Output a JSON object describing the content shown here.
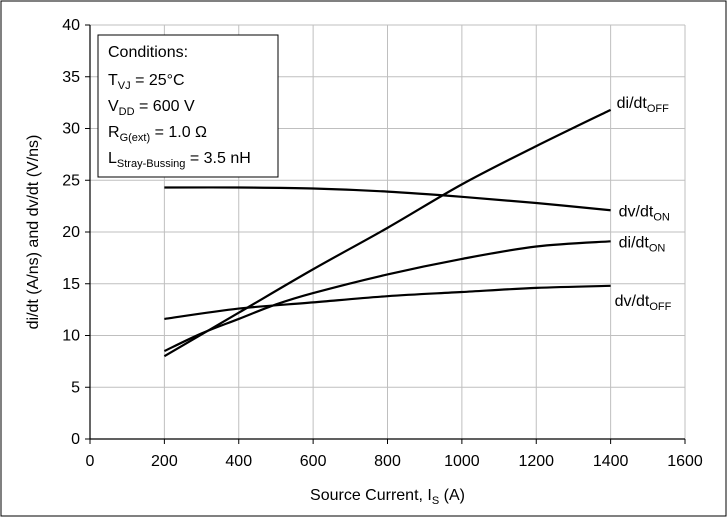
{
  "chart_data": {
    "type": "line",
    "xlabel": {
      "main": "Source Current, I",
      "sub": "S",
      "tail": " (A)"
    },
    "ylabel": "di/dt (A/ns) and dv/dt (V/ns)",
    "xlim": [
      0,
      1600
    ],
    "ylim": [
      0,
      40
    ],
    "x_ticks": [
      0,
      200,
      400,
      600,
      800,
      1000,
      1200,
      1400,
      1600
    ],
    "y_ticks": [
      0,
      5,
      10,
      15,
      20,
      25,
      30,
      35,
      40
    ],
    "grid": true,
    "conditions": {
      "heading": "Conditions:",
      "lines": [
        {
          "main": "T",
          "sub": "VJ",
          "tail": " = 25°C"
        },
        {
          "main": "V",
          "sub": "DD",
          "tail": " = 600 V"
        },
        {
          "main": "R",
          "sub": "G(ext)",
          "tail": " = 1.0 Ω"
        },
        {
          "main": "L",
          "sub": "Stray-Bussing",
          "tail": " = 3.5 nH"
        }
      ]
    },
    "series": [
      {
        "name": "di/dt_OFF",
        "label_main": "di/dt",
        "label_sub": "OFF",
        "x": [
          200,
          400,
          600,
          800,
          1000,
          1200,
          1400
        ],
        "y": [
          8.0,
          12.2,
          16.4,
          20.4,
          24.6,
          28.3,
          31.8
        ]
      },
      {
        "name": "dv/dt_ON",
        "label_main": "dv/dt",
        "label_sub": "ON",
        "x": [
          200,
          400,
          600,
          800,
          1000,
          1200,
          1400
        ],
        "y": [
          24.3,
          24.3,
          24.2,
          23.9,
          23.4,
          22.8,
          22.1
        ]
      },
      {
        "name": "di/dt_ON",
        "label_main": "di/dt",
        "label_sub": "ON",
        "x": [
          200,
          300,
          400,
          500,
          600,
          800,
          1000,
          1200,
          1400
        ],
        "y": [
          8.5,
          10.2,
          11.6,
          13.0,
          14.1,
          15.9,
          17.4,
          18.6,
          19.1
        ]
      },
      {
        "name": "dv/dt_OFF",
        "label_main": "dv/dt",
        "label_sub": "OFF",
        "x": [
          200,
          400,
          600,
          800,
          1000,
          1200,
          1400
        ],
        "y": [
          11.6,
          12.6,
          13.2,
          13.8,
          14.2,
          14.6,
          14.8
        ]
      }
    ]
  }
}
